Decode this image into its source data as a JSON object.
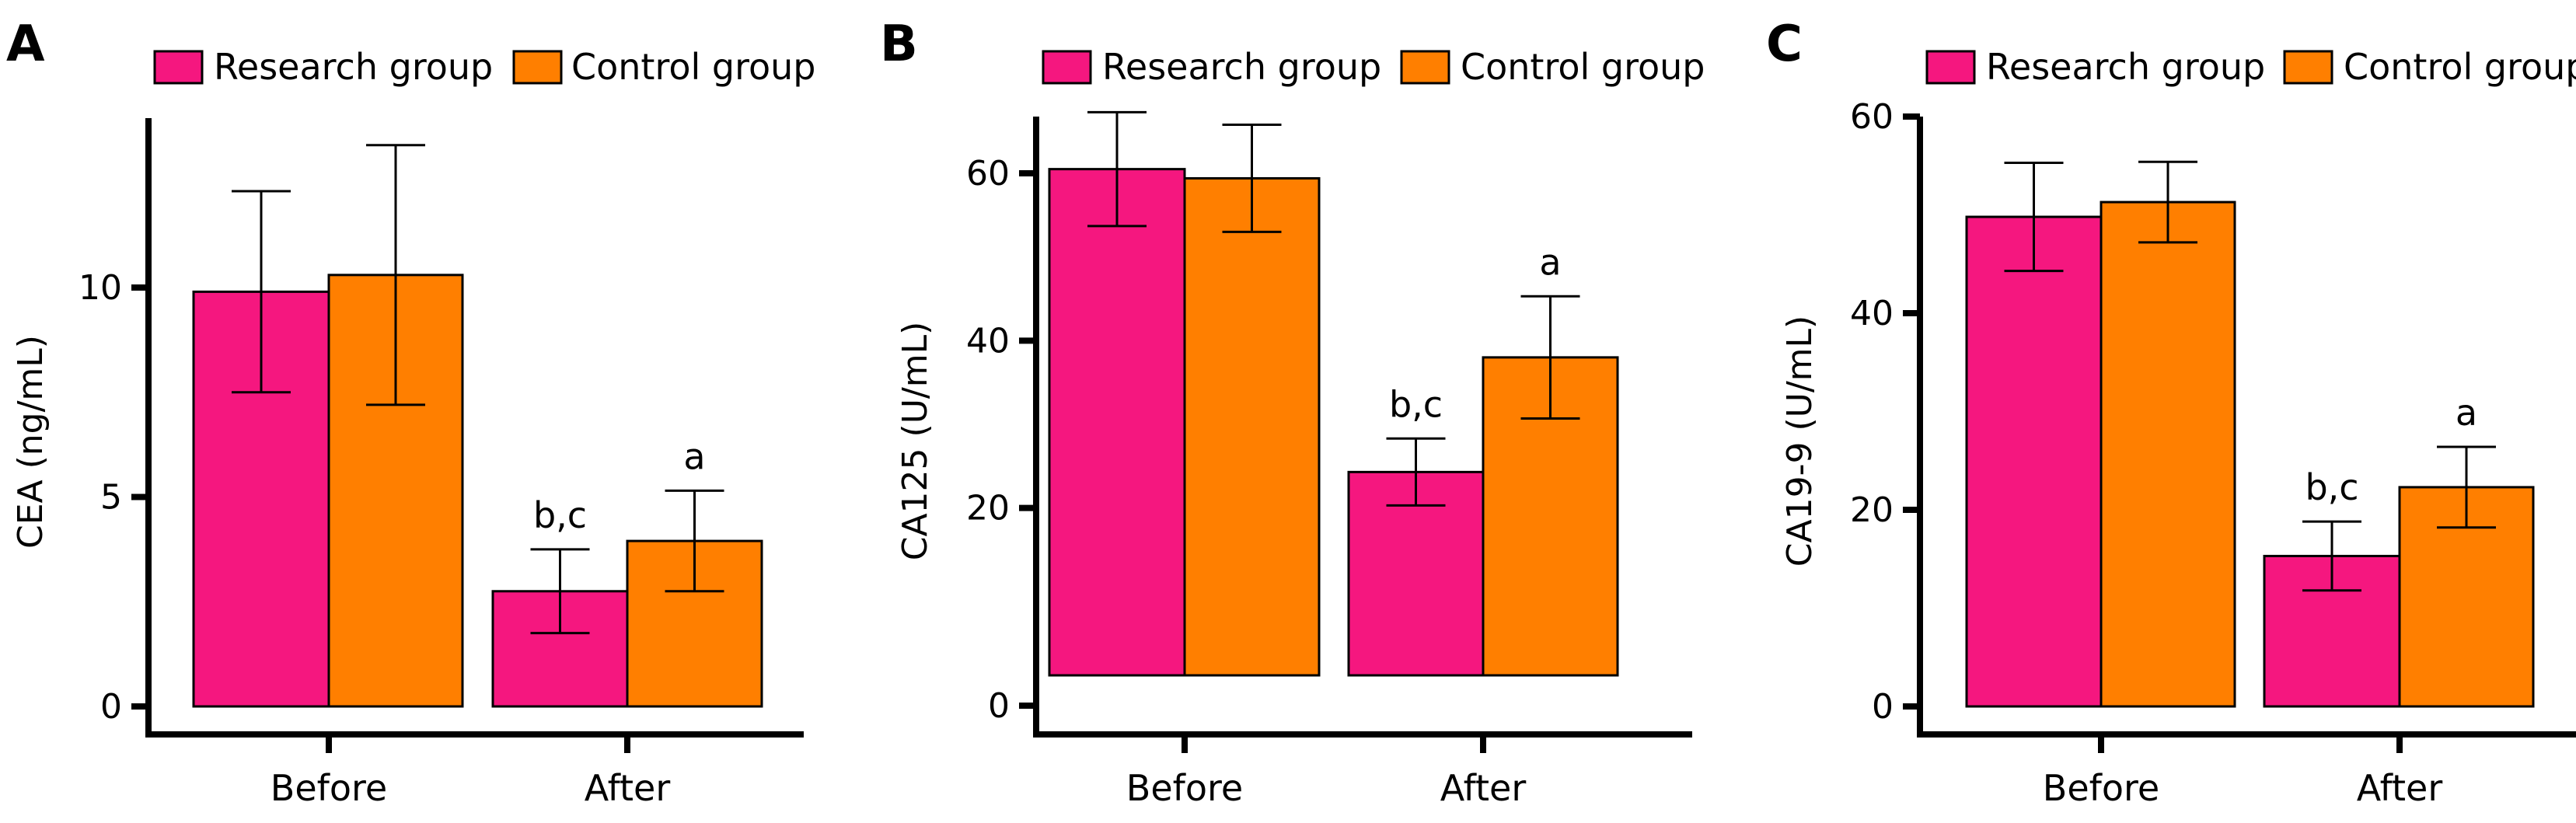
{
  "colors": {
    "research": "#F5177F",
    "control": "#FF7F00",
    "axis": "#000000"
  },
  "legend": [
    {
      "label": "Research group",
      "key": "research"
    },
    {
      "label": "Control group",
      "key": "control"
    }
  ],
  "chart_data": [
    {
      "panel": "A",
      "type": "bar",
      "title": "",
      "xlabel": "",
      "ylabel": "CEA (ng/mL)",
      "categories": [
        "Before",
        "After"
      ],
      "ylim": [
        0,
        14
      ],
      "yticks": [
        0,
        5,
        10
      ],
      "grid": false,
      "legend_position": "top",
      "series": [
        {
          "name": "Research group",
          "values": [
            9.9,
            2.75
          ],
          "errors": [
            2.4,
            1.0
          ]
        },
        {
          "name": "Control group",
          "values": [
            10.3,
            3.95
          ],
          "errors": [
            3.1,
            1.2
          ]
        }
      ],
      "annotations": [
        {
          "category": "After",
          "series": "Research group",
          "text": "b,c"
        },
        {
          "category": "After",
          "series": "Control group",
          "text": "a"
        }
      ]
    },
    {
      "panel": "B",
      "type": "bar",
      "title": "",
      "xlabel": "",
      "ylabel": "CA125 (U/mL)",
      "categories": [
        "Before",
        "After"
      ],
      "ylim": [
        0,
        70
      ],
      "yticks": [
        0,
        20,
        40,
        60
      ],
      "grid": false,
      "legend_position": "top",
      "series": [
        {
          "name": "Research group",
          "values": [
            60.5,
            24.3
          ],
          "errors": [
            6.8,
            4.0
          ]
        },
        {
          "name": "Control group",
          "values": [
            59.4,
            38.0
          ],
          "errors": [
            6.4,
            7.3
          ]
        }
      ],
      "annotations": [
        {
          "category": "After",
          "series": "Research group",
          "text": "b,c"
        },
        {
          "category": "After",
          "series": "Control group",
          "text": "a"
        }
      ]
    },
    {
      "panel": "C",
      "type": "bar",
      "title": "",
      "xlabel": "",
      "ylabel": "CA19-9 (U/mL)",
      "categories": [
        "Before",
        "After"
      ],
      "ylim": [
        0,
        60
      ],
      "yticks": [
        0,
        20,
        40,
        60
      ],
      "grid": false,
      "legend_position": "top",
      "series": [
        {
          "name": "Research group",
          "values": [
            49.8,
            15.3
          ],
          "errors": [
            5.5,
            3.5
          ]
        },
        {
          "name": "Control group",
          "values": [
            51.3,
            22.3
          ],
          "errors": [
            4.1,
            4.1
          ]
        }
      ],
      "annotations": [
        {
          "category": "After",
          "series": "Research group",
          "text": "b,c"
        },
        {
          "category": "After",
          "series": "Control group",
          "text": "a"
        }
      ]
    }
  ]
}
